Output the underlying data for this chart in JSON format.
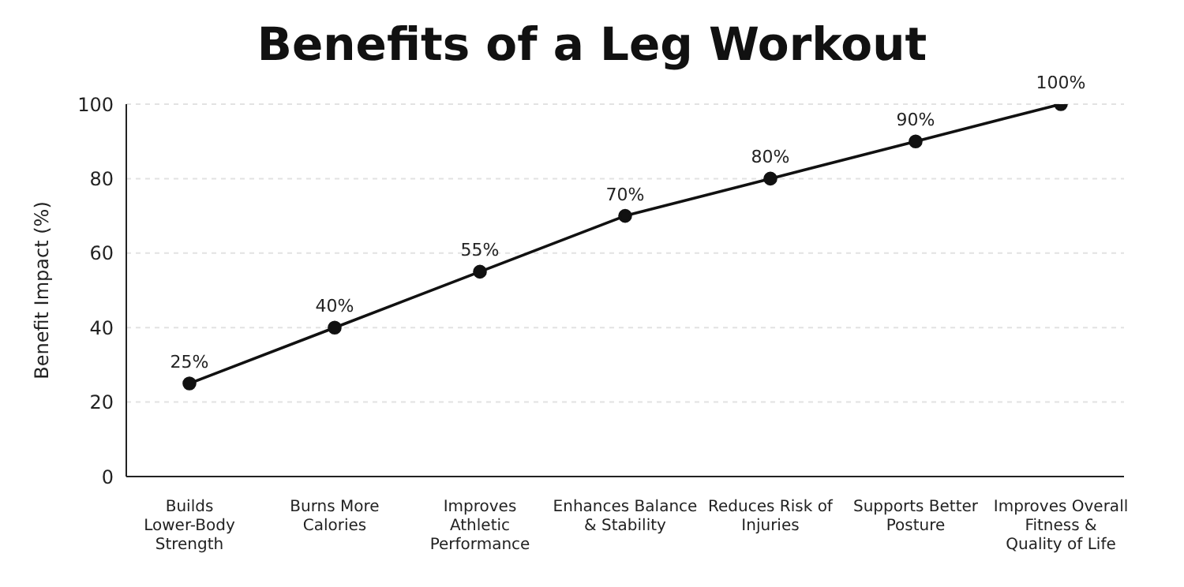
{
  "chart_data": {
    "type": "line",
    "title": "Benefits of a Leg Workout",
    "ylabel": "Benefit Impact (%)",
    "categories": [
      "Builds Lower-Body Strength",
      "Burns More Calories",
      "Improves Athletic Performance",
      "Enhances Balance & Stability",
      "Reduces Risk of Injuries",
      "Supports Better Posture",
      "Improves Overall Fitness & Quality of Life"
    ],
    "series": [
      {
        "color": "#111111",
        "values": [
          25,
          40,
          55,
          70,
          80,
          90,
          100
        ],
        "value_labels": [
          "25%",
          "40%",
          "55%",
          "70%",
          "80%",
          "90%",
          "100%"
        ]
      }
    ],
    "ylim": [
      0,
      100
    ],
    "yticks": [
      0,
      20,
      40,
      60,
      80,
      100
    ],
    "grid": "y",
    "marker": "circle",
    "line_style": "solid"
  }
}
